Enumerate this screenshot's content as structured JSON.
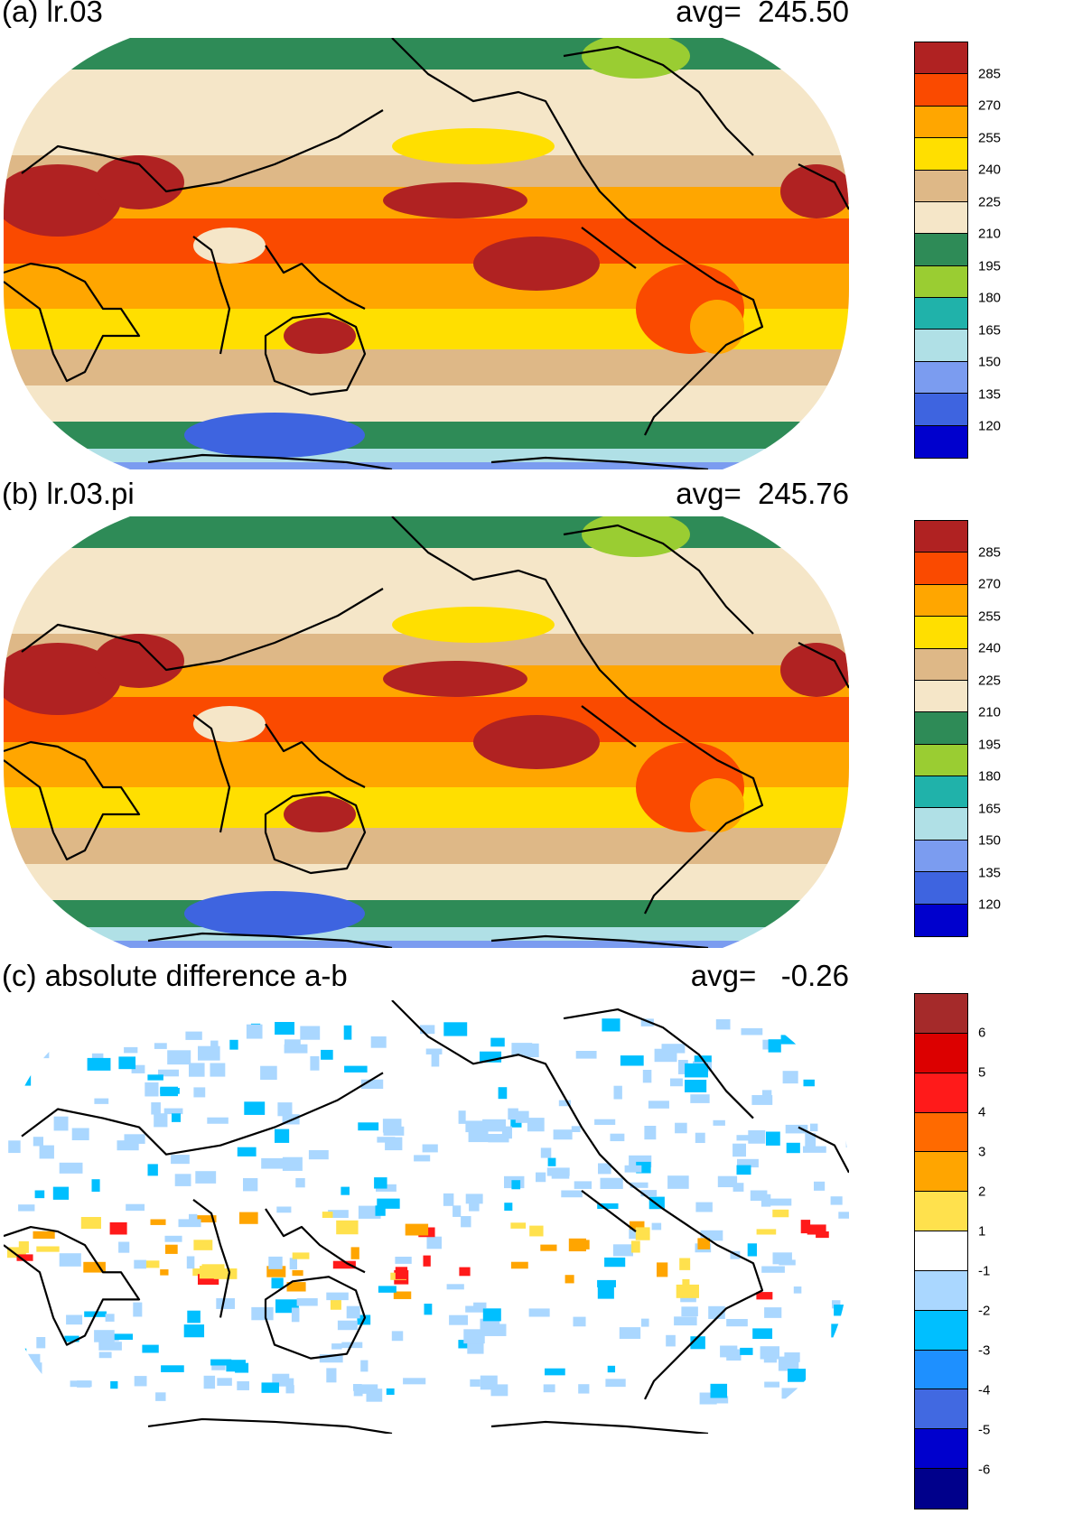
{
  "panels": [
    {
      "title": "(a) lr.03",
      "avg_label": "avg=",
      "avg_value": "245.50",
      "colorbar": {
        "labels": [
          "285",
          "270",
          "255",
          "240",
          "225",
          "210",
          "195",
          "180",
          "165",
          "150",
          "135",
          "120"
        ],
        "colors": [
          "#b02222",
          "#fa4a00",
          "#ffa600",
          "#ffdf00",
          "#deb887",
          "#f5e6c8",
          "#2e8b57",
          "#9acd32",
          "#20b2aa",
          "#b0e0e6",
          "#7b9cf0",
          "#3e64e0",
          "#0000cd"
        ]
      }
    },
    {
      "title": "(b) lr.03.pi",
      "avg_label": "avg=",
      "avg_value": "245.76",
      "colorbar": {
        "labels": [
          "285",
          "270",
          "255",
          "240",
          "225",
          "210",
          "195",
          "180",
          "165",
          "150",
          "135",
          "120"
        ],
        "colors": [
          "#b02222",
          "#fa4a00",
          "#ffa600",
          "#ffdf00",
          "#deb887",
          "#f5e6c8",
          "#2e8b57",
          "#9acd32",
          "#20b2aa",
          "#b0e0e6",
          "#7b9cf0",
          "#3e64e0",
          "#0000cd"
        ]
      }
    },
    {
      "title": "(c) absolute difference a-b",
      "avg_label": "avg=",
      "avg_value": " -0.26",
      "colorbar": {
        "labels": [
          "6",
          "5",
          "4",
          "3",
          "2",
          "1",
          "-1",
          "-2",
          "-3",
          "-4",
          "-5",
          "-6"
        ],
        "colors": [
          "#a52a2a",
          "#dc0000",
          "#ff1a1a",
          "#ff6a00",
          "#ffa500",
          "#ffe14d",
          "#ffffff",
          "#aad7ff",
          "#00bfff",
          "#1e90ff",
          "#4169e1",
          "#0000cd",
          "#00008b"
        ]
      }
    }
  ]
}
